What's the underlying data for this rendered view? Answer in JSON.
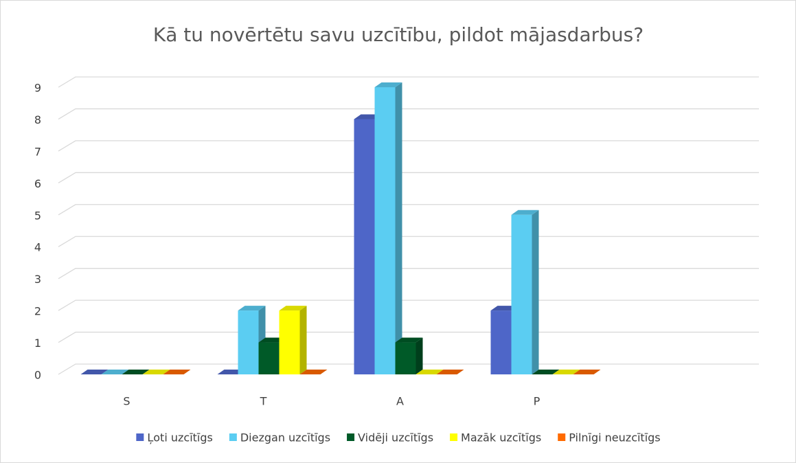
{
  "chart_data": {
    "type": "bar3d",
    "title": "Kā tu novērtētu savu uzcītību, pildot mājasdarbus?",
    "categories": [
      "S",
      "T",
      "A",
      "P",
      null
    ],
    "series": [
      {
        "name": "Ļoti uzcītīgs",
        "color": "#4e66c8",
        "values": [
          0,
          0,
          8,
          2,
          null
        ]
      },
      {
        "name": "Diezgan uzcītīgs",
        "color": "#5bcdf2",
        "values": [
          0,
          2,
          9,
          5,
          null
        ]
      },
      {
        "name": "Vidēji uzcītīgs",
        "color": "#005a28",
        "values": [
          0,
          1,
          1,
          0,
          null
        ]
      },
      {
        "name": "Mazāk uzcītīgs",
        "color": "#ffff00",
        "values": [
          0,
          2,
          0,
          0,
          null
        ]
      },
      {
        "name": "Pilnīgi neuzcītīgs",
        "color": "#ff6a00",
        "values": [
          0,
          0,
          0,
          0,
          null
        ]
      }
    ],
    "ylim": [
      0,
      9
    ],
    "yticks": [
      0,
      1,
      2,
      3,
      4,
      5,
      6,
      7,
      8,
      9
    ],
    "grid": true,
    "legend": "bottom"
  }
}
